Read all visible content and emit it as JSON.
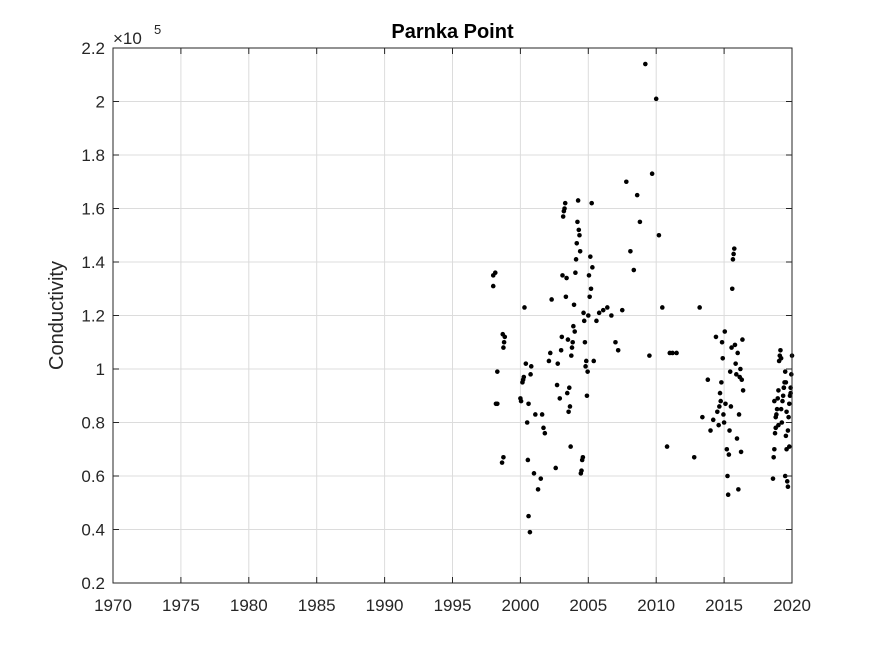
{
  "chart_data": {
    "type": "scatter",
    "title": "Parnka Point",
    "xlabel": "",
    "ylabel": "Conductivity",
    "y_multiplier_label": "×10",
    "y_multiplier_exponent": "5",
    "xlim": [
      1970,
      2020
    ],
    "ylim": [
      0.2,
      2.2
    ],
    "x_ticks": [
      1970,
      1975,
      1980,
      1985,
      1990,
      1995,
      2000,
      2005,
      2010,
      2015,
      2020
    ],
    "x_tick_labels": [
      "1970",
      "1975",
      "1980",
      "1985",
      "1990",
      "1995",
      "2000",
      "2005",
      "2010",
      "2015",
      "2020"
    ],
    "y_ticks": [
      0.2,
      0.4,
      0.6,
      0.8,
      1.0,
      1.2,
      1.4,
      1.6,
      1.8,
      2.0,
      2.2
    ],
    "y_tick_labels": [
      "0.2",
      "0.4",
      "0.6",
      "0.8",
      "1",
      "1.2",
      "1.4",
      "1.6",
      "1.8",
      "2",
      "2.2"
    ],
    "grid": true,
    "marker_color": "#000000",
    "series": [
      {
        "x": [
          1998.0,
          1998.0,
          1998.15,
          1998.3,
          1998.2,
          1998.3,
          1998.65,
          1998.75,
          1998.8,
          1998.85,
          1998.7,
          1998.75,
          2000.0,
          2000.05,
          2000.15,
          2000.2,
          2000.3,
          2000.25,
          2000.4,
          2000.5,
          2000.6,
          2000.55,
          2000.6,
          2000.7,
          2000.75,
          2000.8,
          2001.0,
          2001.1,
          2001.3,
          2001.5,
          2001.6,
          2001.7,
          2001.8,
          2002.1,
          2002.2,
          2002.3,
          2002.6,
          2002.7,
          2002.75,
          2002.9,
          2003.0,
          2003.05,
          2003.1,
          2003.15,
          2003.2,
          2003.25,
          2003.3,
          2003.35,
          2003.4,
          2003.45,
          2003.5,
          2003.55,
          2003.6,
          2003.65,
          2003.7,
          2003.75,
          2003.8,
          2003.85,
          2003.9,
          2003.95,
          2004.0,
          2004.05,
          2004.1,
          2004.15,
          2004.2,
          2004.25,
          2004.3,
          2004.35,
          2004.4,
          2004.45,
          2004.5,
          2004.55,
          2004.6,
          2004.65,
          2004.7,
          2004.75,
          2004.8,
          2004.85,
          2004.9,
          2004.95,
          2005.0,
          2005.05,
          2005.1,
          2005.15,
          2005.2,
          2005.25,
          2005.3,
          2005.4,
          2005.6,
          2005.8,
          2006.1,
          2006.4,
          2006.7,
          2007.0,
          2007.2,
          2007.5,
          2007.8,
          2008.1,
          2008.35,
          2008.6,
          2008.8,
          2009.2,
          2009.5,
          2009.7,
          2010.0,
          2010.2,
          2010.45,
          2010.8,
          2011.0,
          2011.2,
          2011.5,
          2012.8,
          2013.2,
          2013.4,
          2013.8,
          2014.0,
          2014.2,
          2014.4,
          2014.5,
          2014.6,
          2014.65,
          2014.7,
          2014.75,
          2014.8,
          2014.85,
          2014.9,
          2014.95,
          2015.0,
          2015.05,
          2015.1,
          2015.2,
          2015.25,
          2015.3,
          2015.35,
          2015.4,
          2015.45,
          2015.5,
          2015.55,
          2015.6,
          2015.65,
          2015.7,
          2015.75,
          2015.8,
          2015.85,
          2015.9,
          2015.95,
          2016.0,
          2016.05,
          2016.1,
          2016.15,
          2016.2,
          2016.25,
          2016.3,
          2016.35,
          2016.4,
          2018.6,
          2018.65,
          2018.7,
          2018.75,
          2018.8,
          2018.85,
          2018.9,
          2018.95,
          2019.0,
          2019.05,
          2019.1,
          2019.15,
          2019.2,
          2019.25,
          2019.3,
          2019.35,
          2019.4,
          2019.45,
          2019.5,
          2019.55,
          2019.6,
          2019.65,
          2019.7,
          2019.75,
          2019.8,
          2019.85,
          2019.9,
          2019.95,
          2020.0,
          2019.5,
          2019.55,
          2019.7,
          2019.6,
          2019.8,
          2019.9,
          2018.7,
          2018.8,
          2019.0,
          2019.2,
          2019.4
        ],
        "y": [
          1.31,
          1.35,
          1.36,
          0.87,
          0.87,
          0.99,
          0.65,
          0.67,
          1.1,
          1.12,
          1.13,
          1.08,
          0.89,
          0.88,
          0.95,
          0.96,
          1.23,
          0.97,
          1.02,
          0.8,
          0.87,
          0.66,
          0.45,
          0.39,
          0.98,
          1.01,
          0.61,
          0.83,
          0.55,
          0.59,
          0.83,
          0.78,
          0.76,
          1.03,
          1.06,
          1.26,
          0.63,
          0.94,
          1.02,
          0.89,
          1.07,
          1.12,
          1.35,
          1.57,
          1.59,
          1.6,
          1.62,
          1.27,
          1.34,
          0.91,
          1.11,
          0.84,
          0.93,
          0.86,
          0.71,
          1.05,
          1.08,
          1.1,
          1.16,
          1.24,
          1.14,
          1.36,
          1.41,
          1.47,
          1.55,
          1.63,
          1.52,
          1.5,
          1.44,
          0.61,
          0.62,
          0.66,
          0.67,
          1.21,
          1.18,
          1.1,
          1.01,
          1.03,
          0.9,
          0.99,
          1.2,
          1.35,
          1.27,
          1.42,
          1.3,
          1.62,
          1.38,
          1.03,
          1.18,
          1.21,
          1.22,
          1.23,
          1.2,
          1.1,
          1.07,
          1.22,
          1.7,
          1.44,
          1.37,
          1.65,
          1.55,
          2.14,
          1.05,
          1.73,
          2.01,
          1.5,
          1.23,
          0.71,
          1.06,
          1.06,
          1.06,
          0.67,
          1.23,
          0.82,
          0.96,
          0.77,
          0.81,
          1.12,
          0.84,
          0.79,
          0.86,
          0.91,
          0.88,
          0.95,
          1.1,
          1.04,
          0.83,
          0.8,
          1.14,
          0.87,
          0.7,
          0.6,
          0.53,
          0.68,
          0.77,
          0.99,
          0.86,
          1.08,
          1.3,
          1.41,
          1.43,
          1.45,
          1.09,
          1.02,
          0.98,
          0.74,
          1.06,
          0.55,
          0.83,
          0.97,
          1.0,
          0.69,
          0.96,
          1.11,
          0.92,
          0.59,
          0.67,
          0.7,
          0.76,
          0.78,
          0.83,
          0.85,
          0.89,
          0.92,
          1.03,
          1.05,
          1.07,
          0.85,
          0.8,
          0.88,
          0.9,
          0.93,
          0.95,
          0.99,
          0.75,
          0.7,
          0.58,
          0.56,
          0.82,
          0.87,
          0.9,
          0.93,
          0.98,
          1.05,
          0.6,
          0.95,
          0.77,
          0.84,
          0.71,
          0.91,
          0.88,
          0.82,
          0.79,
          1.04,
          0.93
        ],
        "marker": "dot"
      }
    ]
  }
}
